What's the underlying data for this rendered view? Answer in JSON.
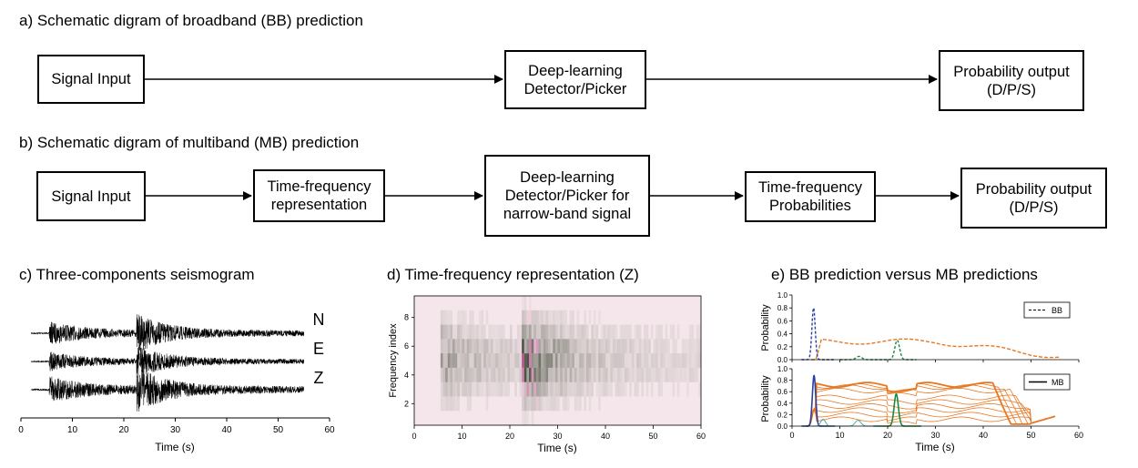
{
  "panel_a": {
    "heading": "a) Schematic digram of broadband (BB) prediction",
    "boxes": [
      {
        "lines": [
          "Signal Input"
        ]
      },
      {
        "lines": [
          "Deep-learning",
          "Detector/Picker"
        ]
      },
      {
        "lines": [
          "Probability output",
          "(D/P/S)"
        ]
      }
    ]
  },
  "panel_b": {
    "heading": "b) Schematic digram of multiband (MB) prediction",
    "boxes": [
      {
        "lines": [
          "Signal Input"
        ]
      },
      {
        "lines": [
          "Time-frequency",
          "representation"
        ]
      },
      {
        "lines": [
          "Deep-learning",
          "Detector/Picker for",
          "narrow-band signal"
        ]
      },
      {
        "lines": [
          "Time-frequency",
          "Probabilities"
        ]
      },
      {
        "lines": [
          "Probability output",
          "(D/P/S)"
        ]
      }
    ]
  },
  "panel_c": {
    "heading": "c) Three-components seismogram",
    "traces": [
      "N",
      "E",
      "Z"
    ],
    "xlabel": "Time (s)",
    "xticks": [
      "0",
      "10",
      "20",
      "30",
      "40",
      "50",
      "60"
    ],
    "xlim": [
      0,
      60
    ]
  },
  "panel_d": {
    "heading": "d) Time-frequency representation (Z)",
    "xlabel": "Time (s)",
    "ylabel": "Frequency index",
    "xticks": [
      "0",
      "10",
      "20",
      "30",
      "40",
      "50",
      "60"
    ],
    "yticks": [
      "2",
      "4",
      "6",
      "8"
    ],
    "xlim": [
      0,
      60
    ],
    "ylim": [
      0.5,
      9.5
    ]
  },
  "panel_e": {
    "heading": "e) BB prediction versus MB predictions",
    "top": {
      "ylabel": "Probability",
      "yticks": [
        "0.0",
        "0.2",
        "0.4",
        "0.6",
        "0.8",
        "1.0"
      ],
      "xticks": [
        "0",
        "10",
        "20",
        "30",
        "40",
        "50",
        "60"
      ],
      "legend": "BB",
      "legend_position": "top-right"
    },
    "bottom": {
      "ylabel": "Probability",
      "yticks": [
        "0.0",
        "0.2",
        "0.4",
        "0.6",
        "0.8",
        "1.0"
      ],
      "xticks": [
        "0",
        "10",
        "20",
        "30",
        "40",
        "50",
        "60"
      ],
      "legend": "MB",
      "legend_position": "top-right"
    },
    "xlabel": "Time (s)",
    "xlim": [
      0,
      60
    ],
    "ylim": [
      0,
      1
    ]
  },
  "colors": {
    "detection": "#e87722",
    "p_phase": "#2b3f9c",
    "s_phase": "#1a8a3a",
    "s_phase_secondary": "#3aa7a0",
    "spectrogram_light": "#f4e6ea",
    "spectrogram_dark": "#303a28",
    "spectrogram_magenta": "#b0307a"
  }
}
